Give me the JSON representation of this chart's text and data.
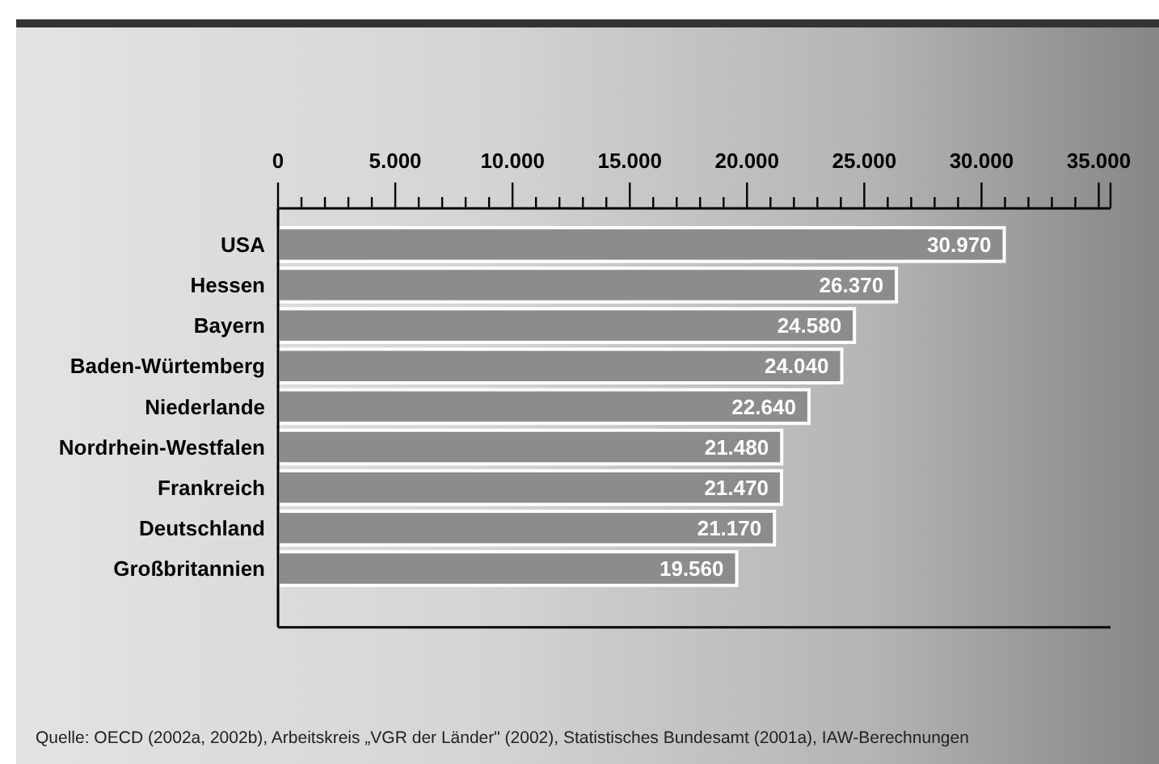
{
  "chart_data": {
    "type": "bar",
    "orientation": "horizontal",
    "categories": [
      "USA",
      "Hessen",
      "Bayern",
      "Baden-Würtemberg",
      "Niederlande",
      "Nordrhein-Westfalen",
      "Frankreich",
      "Deutschland",
      "Großbritannien"
    ],
    "values": [
      30970,
      26370,
      24580,
      24040,
      22640,
      21480,
      21470,
      21170,
      19560
    ],
    "value_labels": [
      "30.970",
      "26.370",
      "24.580",
      "24.040",
      "22.640",
      "21.480",
      "21.470",
      "21.170",
      "19.560"
    ],
    "color": "#8c8c8c",
    "xlim": [
      0,
      35500
    ],
    "xticks": [
      {
        "value": 0,
        "label": "0"
      },
      {
        "value": 1000,
        "label": null
      },
      {
        "value": 2000,
        "label": null
      },
      {
        "value": 3000,
        "label": null
      },
      {
        "value": 4000,
        "label": null
      },
      {
        "value": 5000,
        "label": "5.000"
      },
      {
        "value": 6000,
        "label": null
      },
      {
        "value": 7000,
        "label": null
      },
      {
        "value": 8000,
        "label": null
      },
      {
        "value": 9000,
        "label": null
      },
      {
        "value": 10000,
        "label": "10.000"
      },
      {
        "value": 11000,
        "label": null
      },
      {
        "value": 12000,
        "label": null
      },
      {
        "value": 13000,
        "label": null
      },
      {
        "value": 14000,
        "label": null
      },
      {
        "value": 15000,
        "label": "15.000"
      },
      {
        "value": 16000,
        "label": null
      },
      {
        "value": 17000,
        "label": null
      },
      {
        "value": 18000,
        "label": null
      },
      {
        "value": 19000,
        "label": null
      },
      {
        "value": 20000,
        "label": "20.000"
      },
      {
        "value": 21000,
        "label": null
      },
      {
        "value": 22000,
        "label": null
      },
      {
        "value": 23000,
        "label": null
      },
      {
        "value": 24000,
        "label": null
      },
      {
        "value": 25000,
        "label": "25.000"
      },
      {
        "value": 26000,
        "label": null
      },
      {
        "value": 27000,
        "label": null
      },
      {
        "value": 28000,
        "label": null
      },
      {
        "value": 29000,
        "label": null
      },
      {
        "value": 30000,
        "label": "30.000"
      },
      {
        "value": 31000,
        "label": null
      },
      {
        "value": 32000,
        "label": null
      },
      {
        "value": 33000,
        "label": null
      },
      {
        "value": 34000,
        "label": null
      },
      {
        "value": 35000,
        "label": "35.000"
      }
    ],
    "annotations": [
      "Quelle: OECD (2002a, 2002b), Arbeitskreis „VGR der Länder\" (2002), Statistisches Bundesamt (2001a), IAW-Berechnungen"
    ]
  }
}
